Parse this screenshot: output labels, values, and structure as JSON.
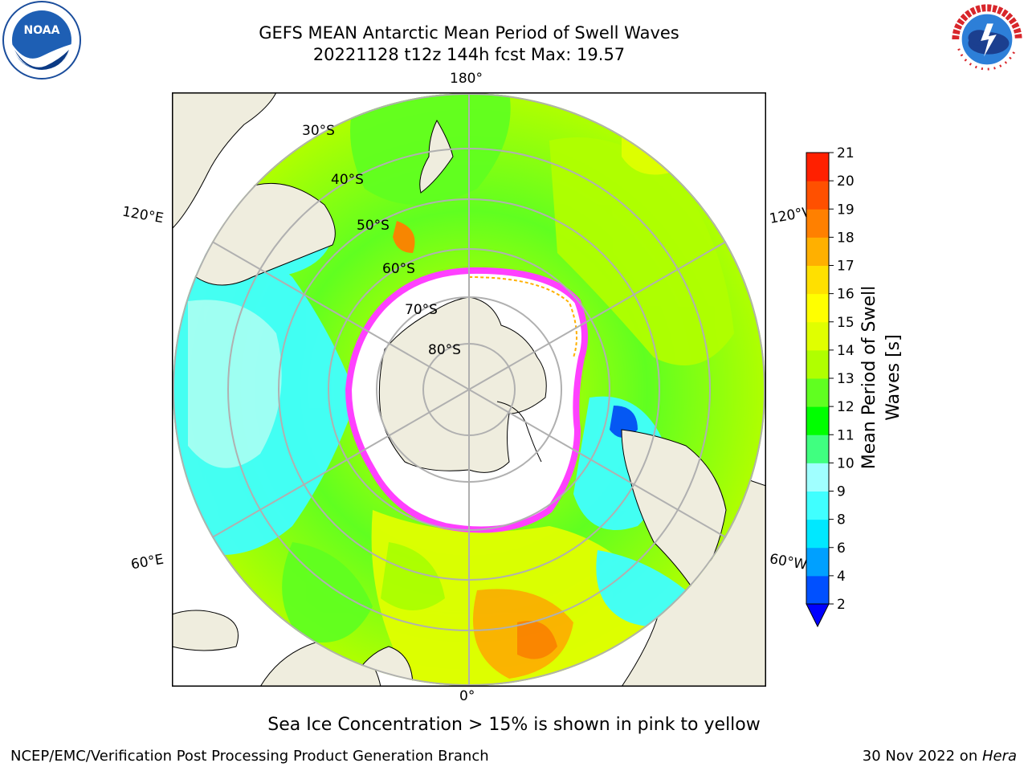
{
  "header": {
    "title_line1": "GEFS MEAN Antarctic Mean Period of Swell Waves",
    "title_line2": "20221128 t12z 144h fcst   Max: 19.57"
  },
  "logos": {
    "left": {
      "icon": "noaa-logo-icon",
      "ring_text": "NATIONAL OCEANIC AND ATMOSPHERIC ADMINISTRATION · U.S. DEPARTMENT OF COMMERCE",
      "center_text": "NOAA"
    },
    "right": {
      "icon": "nws-logo-icon",
      "ring_text": "NATIONAL WEATHER SERVICE"
    }
  },
  "map": {
    "projection": "south polar stereographic",
    "longitude_labels": {
      "top": "180°",
      "bottom": "0°",
      "left_upper": "120°E",
      "left_lower": "60°E",
      "right_upper": "120°W",
      "right_lower": "60°W"
    },
    "latitude_labels": [
      "30°S",
      "40°S",
      "50°S",
      "60°S",
      "70°S",
      "80°S"
    ],
    "colors": {
      "land": "#efedde",
      "ice": "#ffffff",
      "ice_edge": "#ff40ff",
      "grid": "#b0b0b0"
    }
  },
  "colorbar": {
    "label": "Mean Period of Swell Waves [s]",
    "ticks": [
      "2",
      "4",
      "6",
      "8",
      "9",
      "10",
      "11",
      "12",
      "13",
      "14",
      "15",
      "16",
      "17",
      "18",
      "19",
      "20",
      "21"
    ],
    "colors": [
      "#0050ff",
      "#00a0ff",
      "#00e8ff",
      "#40ffff",
      "#a0ffff",
      "#40ff80",
      "#00ff00",
      "#60ff20",
      "#b0ff00",
      "#e0ff00",
      "#ffff00",
      "#ffe000",
      "#ffb000",
      "#ff8000",
      "#ff5000",
      "#ff2000"
    ],
    "under_color": "#0000ff"
  },
  "captions": {
    "ice_note": "Sea Ice Concentration > 15% is shown in pink to yellow",
    "footer_left": "NCEP/EMC/Verification Post Processing Product Generation Branch",
    "footer_right_prefix": "30 Nov 2022 on ",
    "footer_right_machine": "Hera"
  }
}
